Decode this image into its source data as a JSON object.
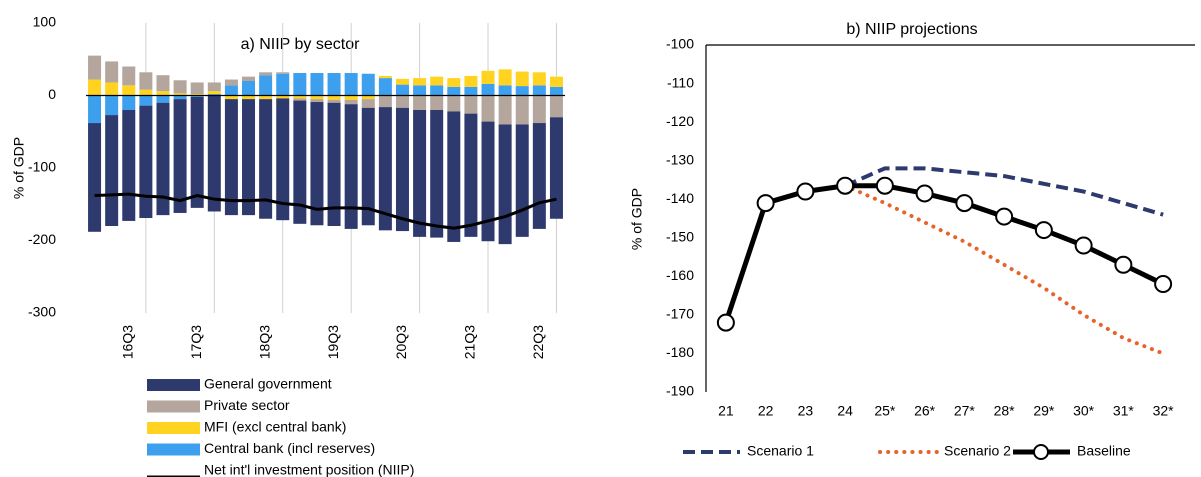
{
  "chart_data": [
    {
      "type": "bar",
      "stacked": true,
      "title": "a) NIIP by sector",
      "y_label": "% of GDP",
      "categories": [
        null,
        null,
        "16Q3",
        null,
        null,
        null,
        "17Q3",
        null,
        null,
        null,
        "18Q3",
        null,
        null,
        null,
        "19Q3",
        null,
        null,
        null,
        "20Q3",
        null,
        null,
        null,
        "21Q3",
        null,
        null,
        null,
        "22Q3",
        null
      ],
      "series": [
        {
          "name": "General government",
          "color": "#2e3a6e",
          "values": [
            -150,
            -153,
            -153,
            -155,
            -155,
            -157,
            -153,
            -160,
            -160,
            -160,
            -165,
            -168,
            -170,
            -170,
            -170,
            -172,
            -162,
            -170,
            -170,
            -175,
            -176,
            -180,
            -170,
            -165,
            -165,
            -155,
            -146,
            -140
          ]
        },
        {
          "name": "Private sector",
          "color": "#b4a69c",
          "values": [
            33,
            29,
            26,
            24,
            22,
            18,
            16,
            12,
            8,
            6,
            4,
            2,
            -3,
            -4,
            -4,
            -6,
            -12,
            -16,
            -17,
            -20,
            -20,
            -22,
            -25,
            -36,
            -40,
            -40,
            -38,
            -30
          ]
        },
        {
          "name": "MFI (excl central bank)",
          "color": "#ffd320",
          "values": [
            22,
            18,
            14,
            8,
            6,
            3,
            2,
            4,
            -5,
            -5,
            -5,
            -4,
            -4,
            -5,
            -6,
            -6,
            -5,
            3,
            8,
            10,
            12,
            12,
            15,
            18,
            22,
            20,
            18,
            14
          ]
        },
        {
          "name": "Central bank (incl reserves)",
          "color": "#3ca0ee",
          "values": [
            -38,
            -27,
            -20,
            -14,
            -10,
            -5,
            -2,
            2,
            14,
            20,
            28,
            30,
            31,
            31,
            31,
            31,
            30,
            24,
            15,
            14,
            14,
            12,
            12,
            16,
            14,
            13,
            14,
            12
          ]
        },
        {
          "name": "Net int'l investment position (NIIP)",
          "type": "line",
          "color": "#000000",
          "values": [
            -138,
            -137,
            -136,
            -139,
            -140,
            -145,
            -138,
            -143,
            -145,
            -145,
            -144,
            -149,
            -151,
            -157,
            -155,
            -155,
            -156,
            -163,
            -170,
            -176,
            -180,
            -183,
            -179,
            -173,
            -167,
            -158,
            -148,
            -143
          ]
        }
      ],
      "ylim": [
        -300,
        100
      ],
      "yticks": [
        -300,
        -200,
        -100,
        0,
        100
      ]
    },
    {
      "type": "line",
      "title": "b) NIIP projections",
      "y_label": "% of GDP",
      "categories": [
        "21",
        "22",
        "23",
        "24",
        "25*",
        "26*",
        "27*",
        "28*",
        "29*",
        "30*",
        "31*",
        "32*"
      ],
      "series": [
        {
          "name": "Scenario 1",
          "color": "#2e3a6e",
          "dash": "dashed",
          "values": [
            null,
            null,
            null,
            -136.5,
            -132,
            -132,
            -133,
            -134,
            -136,
            -138,
            -141,
            -144
          ]
        },
        {
          "name": "Scenario 2",
          "color": "#e8632b",
          "dash": "dotted",
          "values": [
            null,
            null,
            null,
            -136.5,
            -141,
            -146,
            -151,
            -157,
            -163,
            -170,
            -176,
            -180
          ]
        },
        {
          "name": "Baseline",
          "color": "#000000",
          "dash": "solid",
          "markers": true,
          "values": [
            -172,
            -141,
            -138,
            -136.5,
            -136.5,
            -138.5,
            -141,
            -144.5,
            -148,
            -152,
            -157,
            -162
          ]
        }
      ],
      "ylim": [
        -190,
        -100
      ],
      "yticks": [
        -190,
        -180,
        -170,
        -160,
        -150,
        -140,
        -130,
        -120,
        -110,
        -100
      ]
    }
  ]
}
